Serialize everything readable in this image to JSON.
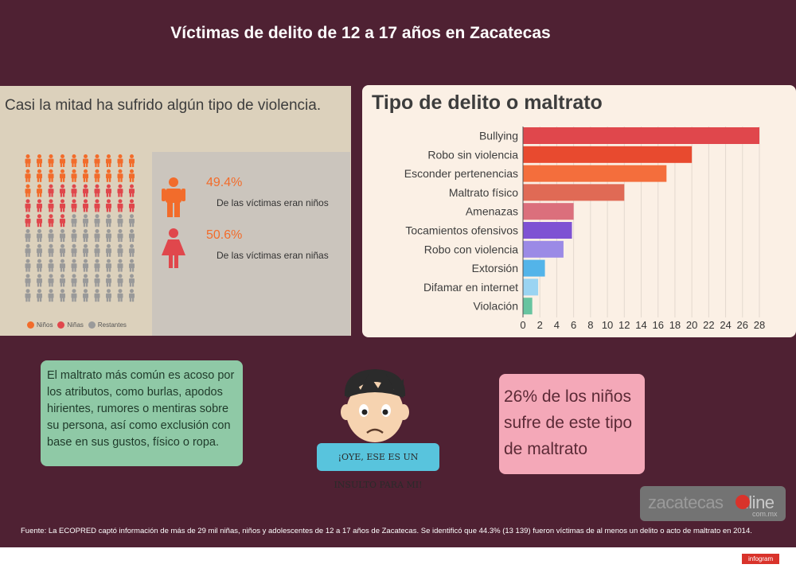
{
  "title": "Víctimas de delito de 12 a 17 años en Zacatecas",
  "left_panel": {
    "heading": "Casi la mitad ha  sufrido algún tipo de violencia.",
    "boys_pct": "49.4%",
    "boys_label": "De las víctimas eran niños",
    "girls_pct": "50.6%",
    "girls_label": "De las víctimas eran niñas",
    "pictogram": {
      "rows": 10,
      "cols": 10,
      "boys": 22,
      "girls": 22,
      "colors": {
        "boys": "#f26c2b",
        "girls": "#e0474c",
        "rest": "#9a9a9a"
      }
    },
    "legend": [
      "Niños",
      "Niñas",
      "Restantes"
    ]
  },
  "chart_data": {
    "type": "bar",
    "orientation": "horizontal",
    "title": "Tipo de delito o maltrato",
    "categories": [
      "Bullying",
      "Robo sin violencia",
      "Esconder pertenencias",
      "Maltrato físico",
      "Amenazas",
      "Tocamientos ofensivos",
      "Robo con violencia",
      "Extorsión",
      "Difamar en internet",
      "Violación"
    ],
    "values": [
      28,
      20,
      17,
      12,
      6,
      5.8,
      4.8,
      2.6,
      1.8,
      1.1
    ],
    "colors": [
      "#e0474c",
      "#e84a2f",
      "#f46e3c",
      "#e06a55",
      "#db6f7c",
      "#7e52d3",
      "#9b8ae6",
      "#53b4e9",
      "#9ad4f2",
      "#68c4a0"
    ],
    "xlim": [
      0,
      28
    ],
    "xticks": [
      0,
      2,
      4,
      6,
      8,
      10,
      12,
      14,
      16,
      18,
      20,
      22,
      24,
      26,
      28
    ],
    "grid": true
  },
  "green_box": {
    "text": "El maltrato más común es acoso por los atributos, como burlas, apodos hirientes, rumores o mentiras sobre su persona, así como exclusión con base en sus gustos, físico o ropa."
  },
  "bubble": {
    "text": "¡OYE, ESE ES UN INSULTO PARA MI!"
  },
  "pink_box": {
    "text": "26% de los niños sufre de este tipo de maltrato"
  },
  "logo": {
    "main": "zacatecas",
    "accent": "nline",
    "suffix": "com.mx"
  },
  "footer": "Fuente: La ECOPRED captó información de más de 29 mil niñas, niños y adolescentes de 12 a 17 años de Zacatecas. Se identificó que 44.3% (13 139) fueron víctimas de al menos un delito o acto de maltrato en 2014.",
  "infogram_badge": "infogram"
}
